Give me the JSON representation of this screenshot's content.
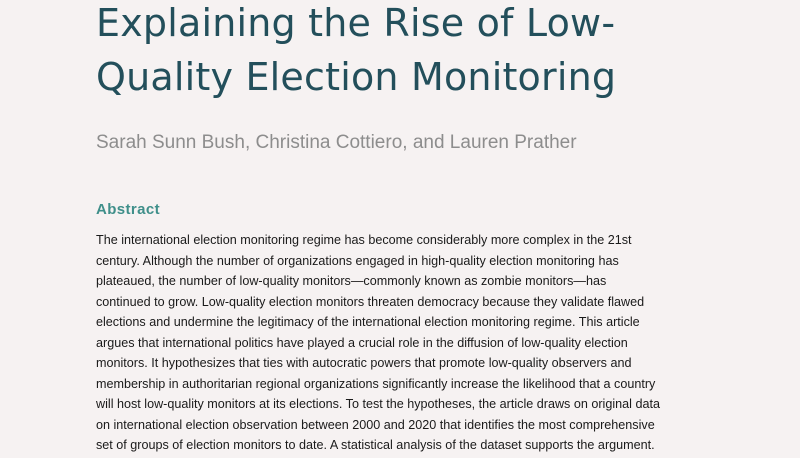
{
  "title": {
    "line1": "Explaining the Rise of Low-",
    "line2": "Quality Election Monitoring"
  },
  "authors": "Sarah Sunn Bush, Christina Cottiero, and Lauren Prather",
  "abstract": {
    "heading": "Abstract",
    "lines": [
      "The international election monitoring regime has become considerably more complex in the 21st",
      "century. Although the number of organizations engaged in high-quality election monitoring has",
      "plateaued, the number of low-quality monitors—commonly known as zombie monitors—has",
      "continued to grow. Low-quality election monitors threaten democracy because they validate flawed",
      "elections and undermine the legitimacy of the international election monitoring regime. This article",
      "argues that international politics have played a crucial role in the diffusion of low-quality election",
      "monitors. It hypothesizes that ties with autocratic powers that promote low-quality observers and",
      "membership in authoritarian regional organizations significantly increase the likelihood that a country",
      "will host low-quality monitors at its elections. To test the hypotheses, the article draws on original data",
      "on international election observation between 2000 and 2020 that identifies the most comprehensive",
      "set of groups of election monitors to date. A statistical analysis of the dataset supports the argument."
    ]
  }
}
